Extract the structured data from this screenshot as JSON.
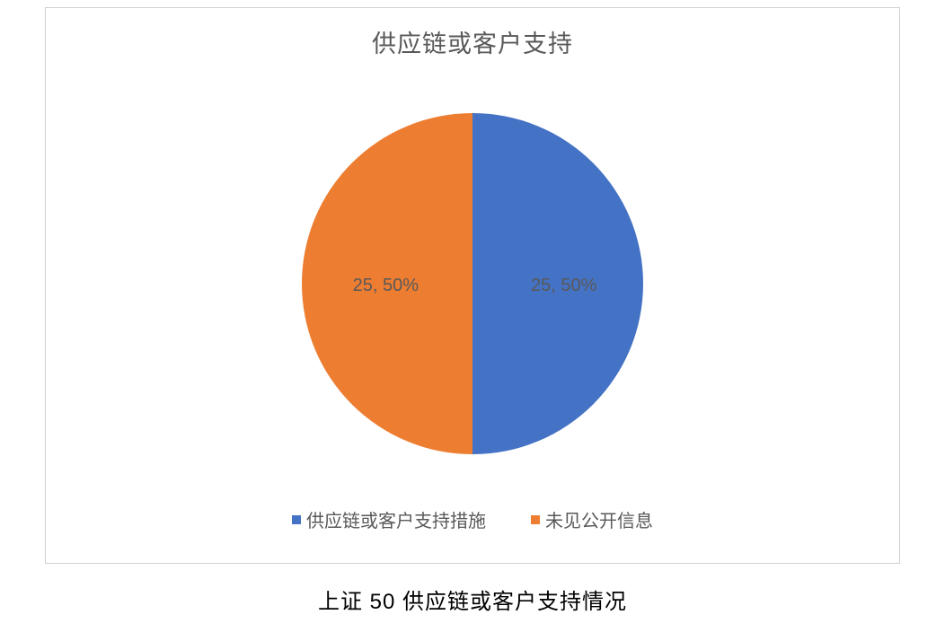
{
  "chart": {
    "type": "pie",
    "title": "供应链或客户支持",
    "title_fontsize": 27,
    "title_color": "#595959",
    "background_color": "#ffffff",
    "border_color": "#d0d0d0",
    "pie_diameter": 380,
    "slices": [
      {
        "label": "供应链或客户支持措施",
        "count": 25,
        "percent": 50,
        "color": "#4472c4",
        "start_angle": 0,
        "end_angle": 180,
        "data_label": "25, 50%",
        "data_label_position": "right"
      },
      {
        "label": "未见公开信息",
        "count": 25,
        "percent": 50,
        "color": "#ed7d31",
        "start_angle": 180,
        "end_angle": 360,
        "data_label": "25, 50%",
        "data_label_position": "left"
      }
    ],
    "label_fontsize": 20,
    "label_color": "#595959",
    "legend": {
      "position": "bottom",
      "fontsize": 20,
      "marker_size": 10,
      "text_color": "#595959"
    }
  },
  "caption": {
    "text": "上证 50  供应链或客户支持情况",
    "fontsize": 24,
    "color": "#000000"
  }
}
